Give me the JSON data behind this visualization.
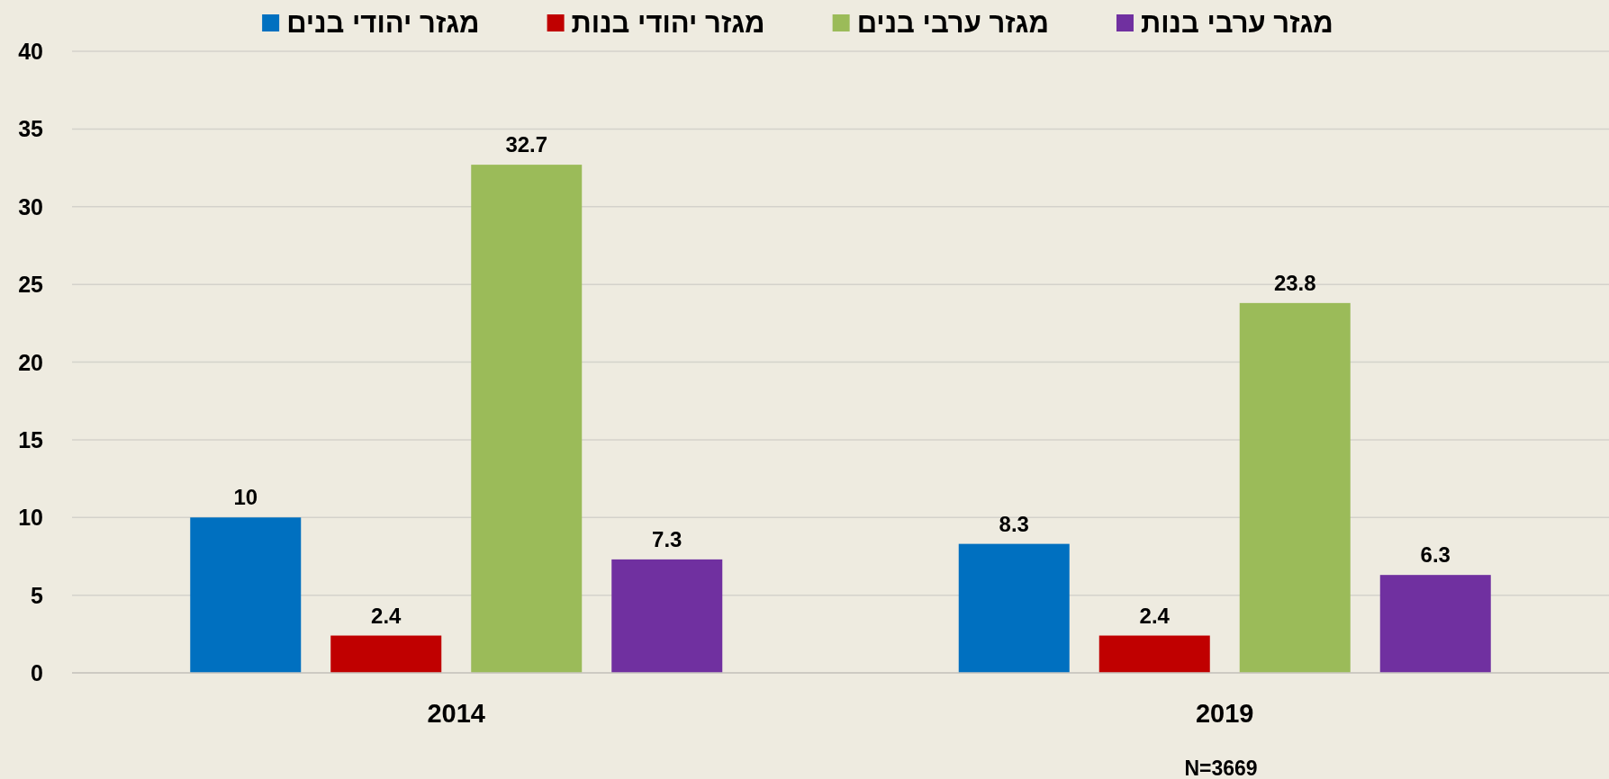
{
  "chart_data": {
    "type": "bar",
    "categories": [
      "2014",
      "2019"
    ],
    "series": [
      {
        "name": "מגזר יהודי בנים",
        "color": "#0070c0",
        "values": [
          10,
          8.3
        ]
      },
      {
        "name": "מגזר יהודי בנות",
        "color": "#c00000",
        "values": [
          2.4,
          2.4
        ]
      },
      {
        "name": "מגזר ערבי בנים",
        "color": "#9bbb59",
        "values": [
          32.7,
          23.8
        ]
      },
      {
        "name": "מגזר ערבי בנות",
        "color": "#7030a0",
        "values": [
          7.3,
          6.3
        ]
      }
    ],
    "ylim": [
      0,
      40
    ],
    "yticks": [
      0,
      5,
      10,
      15,
      20,
      25,
      30,
      35,
      40
    ],
    "grid": "y",
    "legend": "top",
    "data_labels": true,
    "annotations": [
      "N=3669"
    ]
  }
}
